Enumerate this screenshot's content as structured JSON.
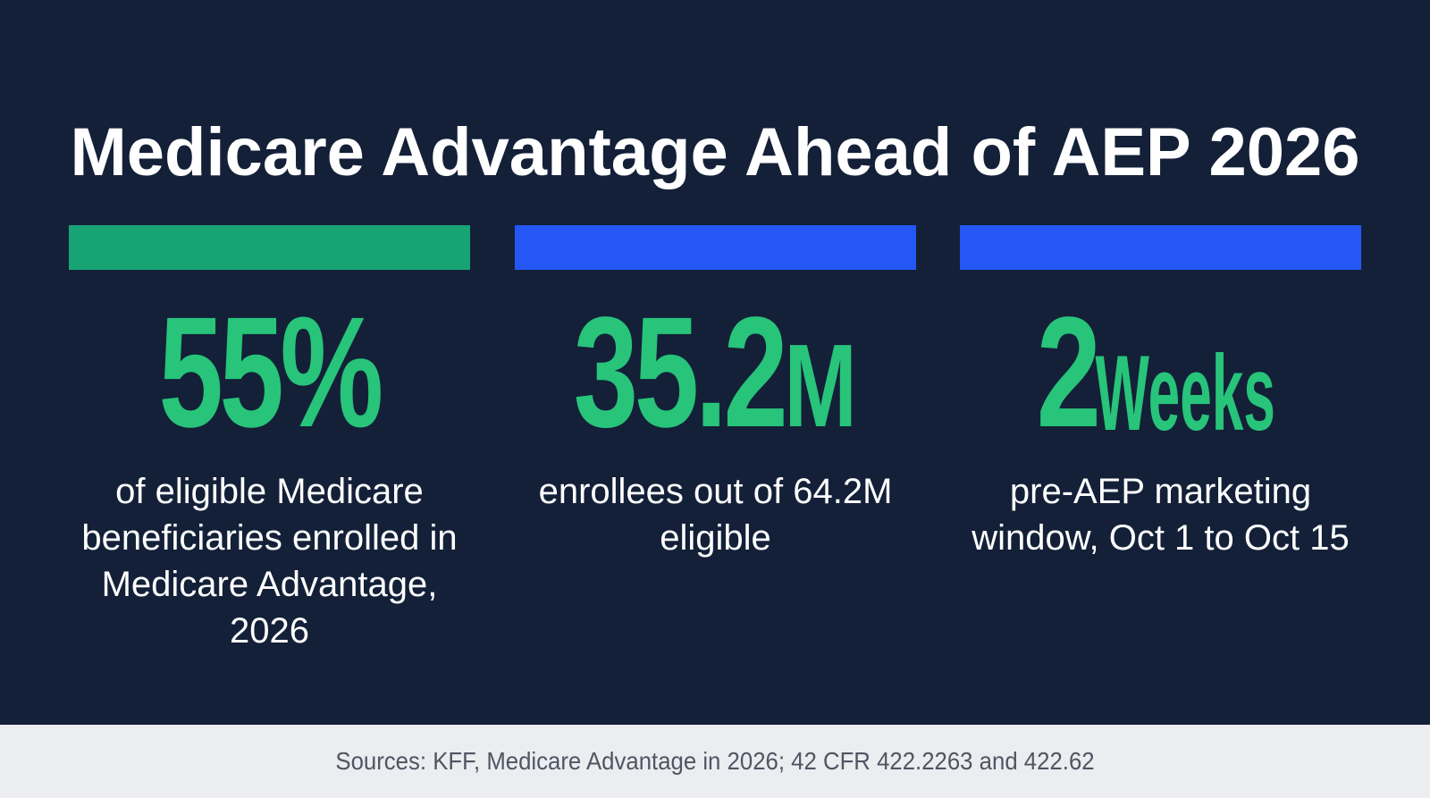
{
  "title": "Medicare Advantage Ahead of AEP 2026",
  "colors": {
    "background": "#132038",
    "stat_number": "#27c47a",
    "accent_green": "#17a374",
    "accent_blue": "#2457f5",
    "footer_background": "#ebedf0",
    "footer_text": "#4f5663"
  },
  "stats": [
    {
      "value": "55%",
      "unit": "",
      "description": "of eligible Medicare beneficiaries enrolled in Medicare Advantage, 2026"
    },
    {
      "value": "35.2",
      "unit": "M",
      "description": "enrollees out of 64.2M eligible"
    },
    {
      "value": "2",
      "unit": "Weeks",
      "description": "pre-AEP marketing window, Oct 1 to Oct 15"
    }
  ],
  "footer": {
    "sources": "Sources: KFF, Medicare Advantage in 2026; 42 CFR 422.2263 and 422.62"
  }
}
